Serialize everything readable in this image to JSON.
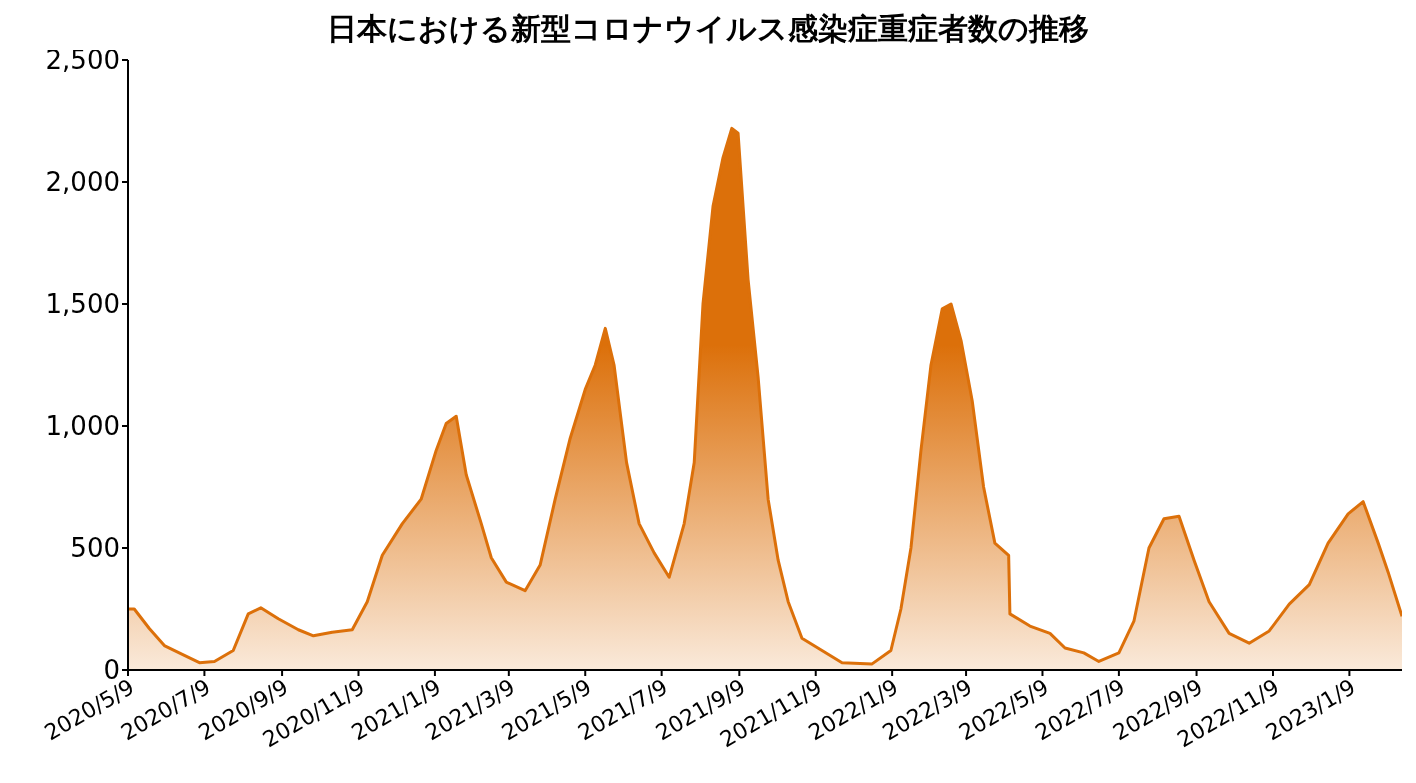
{
  "chart_data": {
    "type": "area",
    "title": "日本における新型コロナウイルス感染症重症者数の推移",
    "x": [
      "2020-05-09",
      "2020-05-14",
      "2020-05-26",
      "2020-06-07",
      "2020-06-23",
      "2020-07-05",
      "2020-07-17",
      "2020-08-01",
      "2020-08-13",
      "2020-08-23",
      "2020-09-06",
      "2020-09-22",
      "2020-10-04",
      "2020-10-19",
      "2020-11-04",
      "2020-11-16",
      "2020-11-28",
      "2020-12-14",
      "2020-12-29",
      "2021-01-10",
      "2021-01-18",
      "2021-01-26",
      "2021-02-03",
      "2021-02-15",
      "2021-02-23",
      "2021-03-07",
      "2021-03-22",
      "2021-04-03",
      "2021-04-15",
      "2021-04-27",
      "2021-05-09",
      "2021-05-17",
      "2021-05-25",
      "2021-06-01",
      "2021-06-11",
      "2021-06-21",
      "2021-07-03",
      "2021-07-15",
      "2021-07-27",
      "2021-08-04",
      "2021-08-11",
      "2021-08-19",
      "2021-08-27",
      "2021-09-03",
      "2021-09-08",
      "2021-09-16",
      "2021-09-24",
      "2021-10-02",
      "2021-10-10",
      "2021-10-18",
      "2021-10-29",
      "2021-11-14",
      "2021-11-30",
      "2021-12-24",
      "2022-01-08",
      "2022-01-16",
      "2022-01-24",
      "2022-02-01",
      "2022-02-09",
      "2022-02-18",
      "2022-02-25",
      "2022-03-05",
      "2022-03-14",
      "2022-03-23",
      "2022-04-01",
      "2022-04-12",
      "2022-04-13",
      "2022-04-29",
      "2022-05-15",
      "2022-05-27",
      "2022-06-11",
      "2022-06-23",
      "2022-07-09",
      "2022-07-21",
      "2022-08-02",
      "2022-08-14",
      "2022-08-26",
      "2022-09-07",
      "2022-09-19",
      "2022-10-05",
      "2022-10-21",
      "2022-11-06",
      "2022-11-22",
      "2022-12-08",
      "2022-12-23",
      "2023-01-08",
      "2023-01-20",
      "2023-02-01",
      "2023-02-09",
      "2023-02-20"
    ],
    "series": [
      {
        "color": "#dc700a",
        "values": [
          250,
          250,
          170,
          100,
          60,
          30,
          35,
          80,
          230,
          255,
          210,
          165,
          140,
          155,
          165,
          280,
          470,
          600,
          700,
          900,
          1010,
          1040,
          800,
          600,
          460,
          360,
          325,
          430,
          700,
          950,
          1150,
          1250,
          1400,
          1250,
          850,
          600,
          480,
          380,
          600,
          850,
          1500,
          1900,
          2100,
          2220,
          2200,
          1600,
          1200,
          700,
          450,
          280,
          130,
          80,
          30,
          25,
          80,
          250,
          500,
          900,
          1250,
          1480,
          1500,
          1350,
          1100,
          750,
          520,
          470,
          230,
          180,
          150,
          90,
          70,
          35,
          70,
          200,
          500,
          620,
          630,
          450,
          280,
          150,
          110,
          160,
          270,
          350,
          520,
          640,
          690,
          520,
          400,
          220
        ]
      }
    ],
    "xlim": [
      "2020-05-09",
      "2023-02-20"
    ],
    "xticks": [
      {
        "value": "2020-05-09",
        "label": "2020/5/9"
      },
      {
        "value": "2020-07-09",
        "label": "2020/7/9"
      },
      {
        "value": "2020-09-09",
        "label": "2020/9/9"
      },
      {
        "value": "2020-11-09",
        "label": "2020/11/9"
      },
      {
        "value": "2021-01-09",
        "label": "2021/1/9"
      },
      {
        "value": "2021-03-09",
        "label": "2021/3/9"
      },
      {
        "value": "2021-05-09",
        "label": "2021/5/9"
      },
      {
        "value": "2021-07-09",
        "label": "2021/7/9"
      },
      {
        "value": "2021-09-09",
        "label": "2021/9/9"
      },
      {
        "value": "2021-11-09",
        "label": "2021/11/9"
      },
      {
        "value": "2022-01-09",
        "label": "2022/1/9"
      },
      {
        "value": "2022-03-09",
        "label": "2022/3/9"
      },
      {
        "value": "2022-05-09",
        "label": "2022/5/9"
      },
      {
        "value": "2022-07-09",
        "label": "2022/7/9"
      },
      {
        "value": "2022-09-09",
        "label": "2022/9/9"
      },
      {
        "value": "2022-11-09",
        "label": "2022/11/9"
      },
      {
        "value": "2023-01-09",
        "label": "2023/1/9"
      }
    ],
    "ylim": [
      0,
      2500
    ],
    "yticks": [
      {
        "value": 0,
        "label": "0"
      },
      {
        "value": 500,
        "label": "500"
      },
      {
        "value": 1000,
        "label": "1,000"
      },
      {
        "value": 1500,
        "label": "1,500"
      },
      {
        "value": 2000,
        "label": "2,000"
      },
      {
        "value": 2500,
        "label": "2,500"
      }
    ],
    "grid": false,
    "legend": false
  }
}
